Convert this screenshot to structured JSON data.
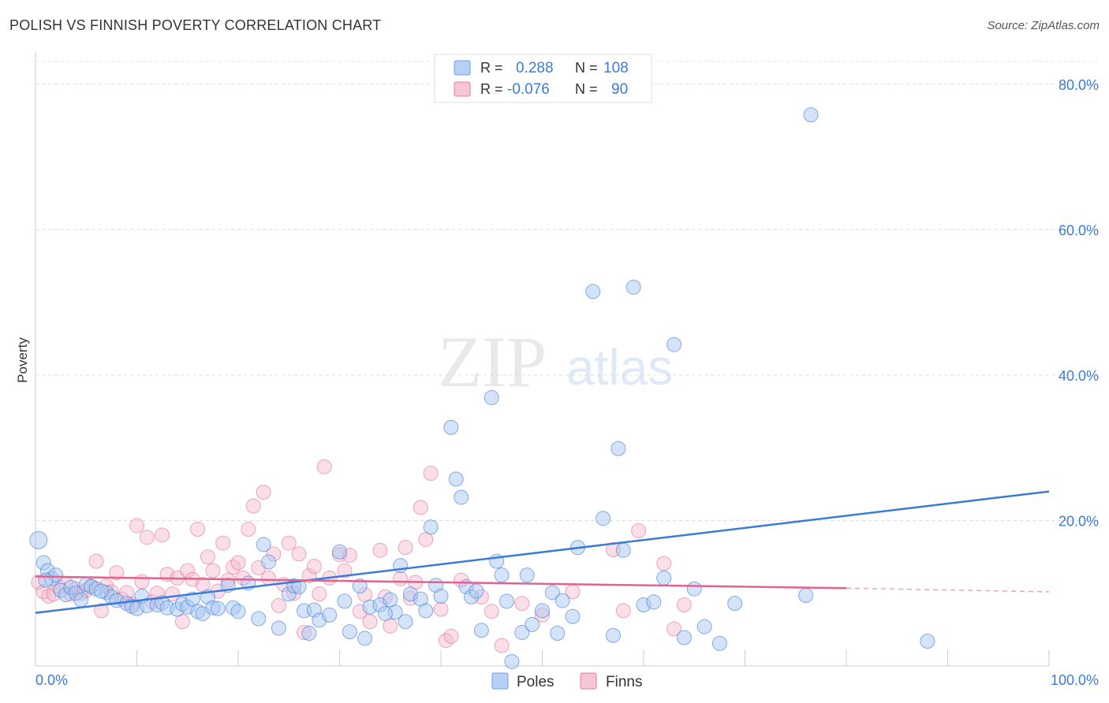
{
  "title": "POLISH VS FINNISH POVERTY CORRELATION CHART",
  "source": "Source: ZipAtlas.com",
  "watermark": {
    "zip": "ZIP",
    "atlas": "atlas"
  },
  "legend_stats": [
    {
      "r_label": "R =",
      "r_value": "0.288",
      "n_label": "N =",
      "n_value": "108",
      "color": "#6fa0e4",
      "fill": "#b7d0f5"
    },
    {
      "r_label": "R =",
      "r_value": "-0.076",
      "n_label": "N =",
      "n_value": "90",
      "color": "#e87aa0",
      "fill": "#f7c6d6"
    }
  ],
  "colors": {
    "poles": "#3b7bd8",
    "poles_fill": "#a9c7f2",
    "finns": "#e2628f",
    "finns_fill": "#f5b8cc",
    "axis_text": "#3b7bd8"
  },
  "chart_data": {
    "type": "scatter",
    "title": "POLISH VS FINNISH POVERTY CORRELATION CHART",
    "xlabel": "",
    "ylabel": "Poverty",
    "xlim": [
      0,
      100
    ],
    "ylim": [
      0,
      84
    ],
    "x_tick_labels": [
      "0.0%",
      "100.0%"
    ],
    "y_ticks": [
      20,
      40,
      60,
      80
    ],
    "y_tick_labels": [
      "20.0%",
      "40.0%",
      "60.0%",
      "80.0%"
    ],
    "grid": true,
    "legend": "top-center",
    "series": [
      {
        "name": "Poles",
        "trend": [
          [
            0,
            7.3
          ],
          [
            100,
            24.0
          ]
        ],
        "points": [
          [
            0.3,
            17.3
          ],
          [
            0.8,
            14.2
          ],
          [
            1.2,
            13.1
          ],
          [
            1.6,
            12.0
          ],
          [
            2.0,
            12.5
          ],
          [
            2.5,
            10.4
          ],
          [
            3.0,
            9.8
          ],
          [
            3.5,
            10.8
          ],
          [
            4.0,
            10.0
          ],
          [
            4.5,
            9.1
          ],
          [
            5.0,
            11.2
          ],
          [
            5.5,
            10.9
          ],
          [
            6.0,
            10.6
          ],
          [
            7.0,
            10.1
          ],
          [
            7.5,
            9.5
          ],
          [
            8.0,
            9.0
          ],
          [
            9.0,
            8.6
          ],
          [
            9.5,
            8.2
          ],
          [
            10.0,
            7.9
          ],
          [
            10.5,
            9.6
          ],
          [
            11.0,
            8.3
          ],
          [
            12.0,
            8.4
          ],
          [
            12.5,
            8.7
          ],
          [
            13.0,
            8.0
          ],
          [
            14.0,
            7.8
          ],
          [
            14.5,
            8.5
          ],
          [
            15.0,
            8.1
          ],
          [
            16.0,
            7.5
          ],
          [
            16.5,
            7.2
          ],
          [
            17.0,
            9.5
          ],
          [
            17.5,
            8.0
          ],
          [
            18.0,
            7.9
          ],
          [
            19.0,
            11.1
          ],
          [
            19.5,
            8.0
          ],
          [
            20.0,
            7.5
          ],
          [
            21.0,
            11.4
          ],
          [
            22.0,
            6.5
          ],
          [
            22.5,
            16.7
          ],
          [
            23.0,
            14.3
          ],
          [
            24.0,
            5.2
          ],
          [
            25.0,
            9.9
          ],
          [
            25.5,
            11.0
          ],
          [
            26.0,
            10.9
          ],
          [
            26.5,
            7.6
          ],
          [
            27.0,
            4.5
          ],
          [
            27.5,
            7.7
          ],
          [
            28.0,
            6.3
          ],
          [
            29.0,
            7.0
          ],
          [
            30.0,
            15.7
          ],
          [
            30.5,
            8.9
          ],
          [
            31.0,
            4.7
          ],
          [
            32.0,
            11.0
          ],
          [
            32.5,
            3.8
          ],
          [
            33.0,
            8.1
          ],
          [
            34.0,
            8.4
          ],
          [
            35.0,
            9.1
          ],
          [
            35.5,
            7.4
          ],
          [
            36.0,
            13.8
          ],
          [
            36.5,
            6.1
          ],
          [
            37.0,
            9.9
          ],
          [
            38.0,
            9.2
          ],
          [
            38.5,
            7.6
          ],
          [
            39.0,
            19.1
          ],
          [
            39.5,
            11.1
          ],
          [
            40.0,
            9.6
          ],
          [
            41.0,
            32.8
          ],
          [
            41.5,
            25.7
          ],
          [
            42.0,
            23.2
          ],
          [
            42.5,
            10.9
          ],
          [
            43.0,
            9.5
          ],
          [
            43.5,
            10.3
          ],
          [
            44.0,
            4.9
          ],
          [
            45.0,
            36.9
          ],
          [
            45.5,
            14.4
          ],
          [
            46.0,
            12.5
          ],
          [
            46.5,
            8.9
          ],
          [
            47.0,
            0.6
          ],
          [
            48.0,
            4.6
          ],
          [
            48.5,
            12.5
          ],
          [
            49.0,
            5.7
          ],
          [
            50.0,
            7.6
          ],
          [
            51.0,
            10.1
          ],
          [
            51.5,
            4.5
          ],
          [
            52.0,
            9.0
          ],
          [
            53.0,
            6.8
          ],
          [
            53.5,
            16.3
          ],
          [
            55.0,
            51.5
          ],
          [
            56.0,
            20.3
          ],
          [
            57.0,
            4.2
          ],
          [
            57.5,
            29.9
          ],
          [
            58.0,
            15.9
          ],
          [
            59.0,
            52.1
          ],
          [
            60.0,
            8.4
          ],
          [
            61.0,
            8.8
          ],
          [
            62.0,
            12.1
          ],
          [
            63.0,
            44.2
          ],
          [
            64.0,
            3.9
          ],
          [
            65.0,
            10.6
          ],
          [
            66.0,
            5.4
          ],
          [
            67.5,
            3.1
          ],
          [
            69.0,
            8.6
          ],
          [
            76.0,
            9.7
          ],
          [
            76.5,
            75.8
          ],
          [
            88.0,
            3.4
          ],
          [
            1.0,
            11.8
          ],
          [
            6.5,
            10.3
          ],
          [
            15.5,
            9.2
          ],
          [
            34.5,
            7.2
          ]
        ]
      },
      {
        "name": "Finns",
        "trend": [
          [
            0,
            12.3
          ],
          [
            80,
            10.7
          ]
        ],
        "trend_dash": [
          [
            80,
            10.7
          ],
          [
            100,
            10.2
          ]
        ],
        "points": [
          [
            0.3,
            11.5
          ],
          [
            0.8,
            10.2
          ],
          [
            1.3,
            9.6
          ],
          [
            1.8,
            9.9
          ],
          [
            2.3,
            10.9
          ],
          [
            3.0,
            11.3
          ],
          [
            3.5,
            9.9
          ],
          [
            4.0,
            10.6
          ],
          [
            4.5,
            10.0
          ],
          [
            5.0,
            10.4
          ],
          [
            5.5,
            11.0
          ],
          [
            6.0,
            14.4
          ],
          [
            6.5,
            7.6
          ],
          [
            7.0,
            11.0
          ],
          [
            7.5,
            10.2
          ],
          [
            8.0,
            12.8
          ],
          [
            8.5,
            9.2
          ],
          [
            9.0,
            10.1
          ],
          [
            9.5,
            8.5
          ],
          [
            10.0,
            19.3
          ],
          [
            10.5,
            11.6
          ],
          [
            11.0,
            17.7
          ],
          [
            11.5,
            8.8
          ],
          [
            12.0,
            10.0
          ],
          [
            12.5,
            18.0
          ],
          [
            13.0,
            12.6
          ],
          [
            13.5,
            9.9
          ],
          [
            14.0,
            12.1
          ],
          [
            14.5,
            6.1
          ],
          [
            15.0,
            13.1
          ],
          [
            15.5,
            11.9
          ],
          [
            16.0,
            18.8
          ],
          [
            16.5,
            11.2
          ],
          [
            17.0,
            15.0
          ],
          [
            17.5,
            13.1
          ],
          [
            18.0,
            10.3
          ],
          [
            18.5,
            16.9
          ],
          [
            19.0,
            11.8
          ],
          [
            19.5,
            13.6
          ],
          [
            20.0,
            14.2
          ],
          [
            20.5,
            12.1
          ],
          [
            21.0,
            18.8
          ],
          [
            21.5,
            22.0
          ],
          [
            22.0,
            13.5
          ],
          [
            22.5,
            23.9
          ],
          [
            23.0,
            12.1
          ],
          [
            23.5,
            15.4
          ],
          [
            24.0,
            8.3
          ],
          [
            24.5,
            11.2
          ],
          [
            25.0,
            16.9
          ],
          [
            25.5,
            10.0
          ],
          [
            26.0,
            15.4
          ],
          [
            26.5,
            4.6
          ],
          [
            27.0,
            12.4
          ],
          [
            27.5,
            13.7
          ],
          [
            28.0,
            9.9
          ],
          [
            28.5,
            27.4
          ],
          [
            29.0,
            12.1
          ],
          [
            30.0,
            15.3
          ],
          [
            30.5,
            13.1
          ],
          [
            31.0,
            15.2
          ],
          [
            32.0,
            7.5
          ],
          [
            32.5,
            9.8
          ],
          [
            33.0,
            6.1
          ],
          [
            34.0,
            15.9
          ],
          [
            34.5,
            9.5
          ],
          [
            35.0,
            5.5
          ],
          [
            36.0,
            12.0
          ],
          [
            36.5,
            16.3
          ],
          [
            37.0,
            9.3
          ],
          [
            37.5,
            11.5
          ],
          [
            38.0,
            21.8
          ],
          [
            38.5,
            17.4
          ],
          [
            39.0,
            26.5
          ],
          [
            40.0,
            7.8
          ],
          [
            40.5,
            3.5
          ],
          [
            41.0,
            4.1
          ],
          [
            42.0,
            11.8
          ],
          [
            44.0,
            9.5
          ],
          [
            45.0,
            7.5
          ],
          [
            46.0,
            2.8
          ],
          [
            48.0,
            8.6
          ],
          [
            50.0,
            7.0
          ],
          [
            53.0,
            10.2
          ],
          [
            57.0,
            16.0
          ],
          [
            58.0,
            7.6
          ],
          [
            59.5,
            18.6
          ],
          [
            62.0,
            14.1
          ],
          [
            63.0,
            5.1
          ],
          [
            64.0,
            8.4
          ]
        ]
      }
    ]
  },
  "legend_bottom": [
    {
      "label": "Poles",
      "color": "#6fa0e4",
      "fill": "#b7d0f5"
    },
    {
      "label": "Finns",
      "color": "#e87aa0",
      "fill": "#f7c6d6"
    }
  ]
}
